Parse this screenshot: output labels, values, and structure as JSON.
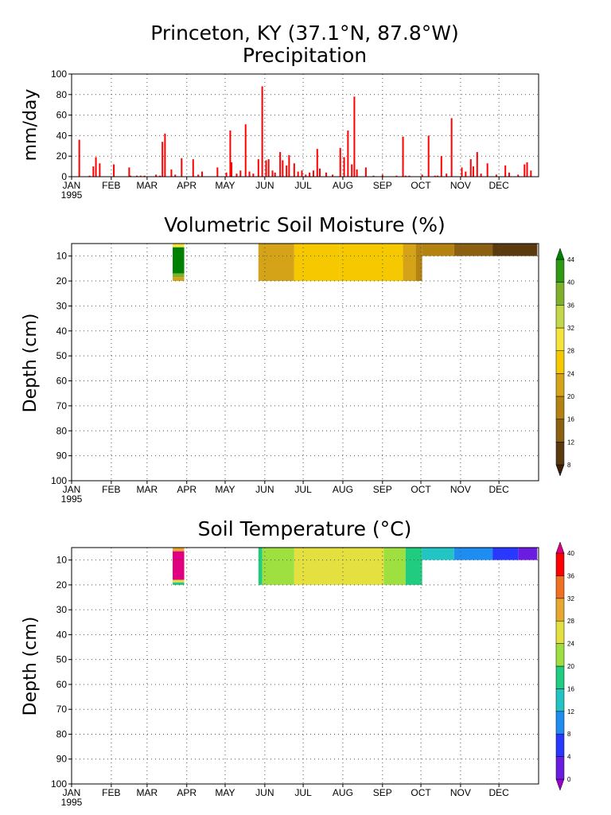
{
  "header": {
    "location": "Princeton, KY   (37.1°N, 87.8°W)"
  },
  "months": [
    "JAN",
    "FEB",
    "MAR",
    "APR",
    "MAY",
    "JUN",
    "JUL",
    "AUG",
    "SEP",
    "OCT",
    "NOV",
    "DEC"
  ],
  "year": "1995",
  "colors": {
    "bars": "#ff0000",
    "grid": "#555555"
  },
  "chart_data": [
    {
      "type": "bar",
      "title": "Precipitation",
      "ylabel": "mm/day",
      "ylim": [
        0,
        100
      ],
      "yticks": [
        0,
        20,
        40,
        60,
        80,
        100
      ],
      "x_unit": "day of year 1995",
      "xlim": [
        1,
        365
      ],
      "grid": true,
      "series": [
        {
          "days": [
            7,
            15,
            18,
            20,
            23,
            34,
            46,
            47,
            52,
            55,
            58,
            67,
            70,
            72,
            74,
            79,
            82,
            87,
            96,
            100,
            103,
            115,
            122,
            125,
            126,
            130,
            133,
            137,
            140,
            143,
            147,
            150,
            153,
            155,
            158,
            160,
            164,
            166,
            169,
            171,
            175,
            178,
            181,
            184,
            187,
            190,
            193,
            195,
            200,
            205,
            211,
            214,
            217,
            220,
            222,
            224,
            231,
            237,
            244,
            255,
            260,
            262,
            265,
            275,
            280,
            285,
            287,
            290,
            294,
            298,
            306,
            309,
            313,
            315,
            318,
            321,
            326,
            333,
            340,
            343,
            350,
            355,
            357,
            360
          ],
          "values": [
            36,
            1,
            10,
            19,
            13,
            12,
            9,
            1,
            1,
            1,
            1,
            2,
            1,
            34,
            42,
            7,
            2,
            18,
            17,
            2,
            5,
            9,
            4,
            45,
            14,
            3,
            6,
            51,
            5,
            3,
            17,
            88,
            16,
            17,
            6,
            4,
            24,
            16,
            11,
            21,
            13,
            5,
            6,
            2,
            4,
            6,
            27,
            8,
            4,
            2,
            28,
            19,
            45,
            12,
            78,
            7,
            9,
            1,
            2,
            1,
            39,
            1,
            1,
            2,
            40,
            1,
            1,
            20,
            3,
            57,
            9,
            5,
            17,
            10,
            24,
            3,
            13,
            2,
            11,
            4,
            2,
            12,
            14,
            6
          ]
        }
      ]
    },
    {
      "type": "heatmap",
      "title": "Volumetric Soil Moisture (%)",
      "ylabel": "Depth (cm)",
      "ylim": [
        100,
        5
      ],
      "yticks": [
        10,
        20,
        30,
        40,
        50,
        60,
        70,
        80,
        90,
        100
      ],
      "colorbar": {
        "labels": [
          8,
          12,
          16,
          20,
          24,
          28,
          32,
          36,
          40,
          44
        ],
        "colors": [
          "#3b1e0a",
          "#5c3a10",
          "#8b6010",
          "#b48211",
          "#d4a317",
          "#f5c800",
          "#f7e43a",
          "#c4d64a",
          "#7fb02a",
          "#2e9a14",
          "#008000"
        ]
      },
      "blocks": [
        {
          "day_from": 80,
          "day_to": 89,
          "depth_from": 5,
          "depth_to": 6.5,
          "value": 30
        },
        {
          "day_from": 80,
          "day_to": 89,
          "depth_from": 6.5,
          "depth_to": 17,
          "value": 46
        },
        {
          "day_from": 80,
          "day_to": 89,
          "depth_from": 17,
          "depth_to": 18.5,
          "value": 38
        },
        {
          "day_from": 80,
          "day_to": 89,
          "depth_from": 18.5,
          "depth_to": 20,
          "value": 22
        },
        {
          "day_from": 147,
          "day_to": 175,
          "depth_from": 5,
          "depth_to": 20,
          "value": 22
        },
        {
          "day_from": 175,
          "day_to": 210,
          "depth_from": 5,
          "depth_to": 20,
          "value": 24
        },
        {
          "day_from": 210,
          "day_to": 260,
          "depth_from": 5,
          "depth_to": 20,
          "value": 26
        },
        {
          "day_from": 260,
          "day_to": 270,
          "depth_from": 5,
          "depth_to": 20,
          "value": 22
        },
        {
          "day_from": 270,
          "day_to": 275,
          "depth_from": 5,
          "depth_to": 20,
          "value": 16
        },
        {
          "day_from": 275,
          "day_to": 300,
          "depth_from": 5,
          "depth_to": 10,
          "value": 16
        },
        {
          "day_from": 300,
          "day_to": 330,
          "depth_from": 5,
          "depth_to": 10,
          "value": 12
        },
        {
          "day_from": 330,
          "day_to": 365,
          "depth_from": 5,
          "depth_to": 10,
          "value": 9
        }
      ]
    },
    {
      "type": "heatmap",
      "title": "Soil Temperature (°C)",
      "ylabel": "Depth (cm)",
      "ylim": [
        100,
        5
      ],
      "yticks": [
        10,
        20,
        30,
        40,
        50,
        60,
        70,
        80,
        90,
        100
      ],
      "colorbar": {
        "labels": [
          0,
          4,
          8,
          12,
          16,
          20,
          24,
          28,
          32,
          36,
          40
        ],
        "colors": [
          "#9900cc",
          "#6a1de0",
          "#2838ff",
          "#1e8cf0",
          "#22c4c4",
          "#20cc80",
          "#9ee040",
          "#e4e040",
          "#e8a830",
          "#f07020",
          "#ff0000",
          "#e0007f"
        ]
      },
      "blocks": [
        {
          "day_from": 80,
          "day_to": 89,
          "depth_from": 5,
          "depth_to": 6.5,
          "value": 30
        },
        {
          "day_from": 80,
          "day_to": 89,
          "depth_from": 6.5,
          "depth_to": 18,
          "value": 42
        },
        {
          "day_from": 80,
          "day_to": 89,
          "depth_from": 18,
          "depth_to": 19,
          "value": 26
        },
        {
          "day_from": 80,
          "day_to": 89,
          "depth_from": 19,
          "depth_to": 20,
          "value": 18
        },
        {
          "day_from": 147,
          "day_to": 150,
          "depth_from": 5,
          "depth_to": 20,
          "value": 18
        },
        {
          "day_from": 150,
          "day_to": 175,
          "depth_from": 5,
          "depth_to": 20,
          "value": 22
        },
        {
          "day_from": 175,
          "day_to": 245,
          "depth_from": 5,
          "depth_to": 20,
          "value": 25
        },
        {
          "day_from": 245,
          "day_to": 262,
          "depth_from": 5,
          "depth_to": 20,
          "value": 22
        },
        {
          "day_from": 262,
          "day_to": 275,
          "depth_from": 5,
          "depth_to": 20,
          "value": 19
        },
        {
          "day_from": 275,
          "day_to": 300,
          "depth_from": 5,
          "depth_to": 10,
          "value": 15
        },
        {
          "day_from": 300,
          "day_to": 330,
          "depth_from": 5,
          "depth_to": 10,
          "value": 11
        },
        {
          "day_from": 330,
          "day_to": 350,
          "depth_from": 5,
          "depth_to": 10,
          "value": 6
        },
        {
          "day_from": 350,
          "day_to": 365,
          "depth_from": 5,
          "depth_to": 10,
          "value": 2
        }
      ]
    }
  ]
}
